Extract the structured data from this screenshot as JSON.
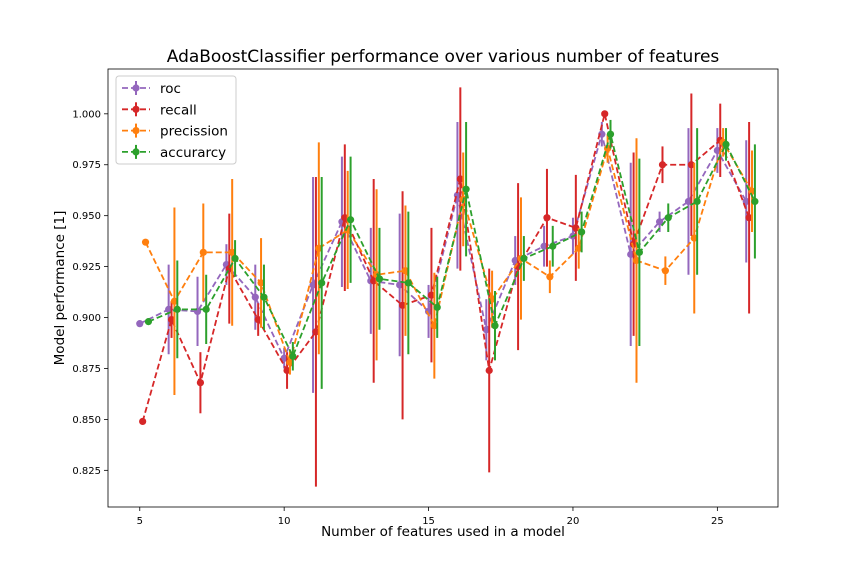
{
  "chart_data": {
    "type": "line",
    "title": "AdaBoostClassifier performance over various number of features",
    "xlabel": "Number of features used in a model",
    "ylabel": "Model performance [1]",
    "xlim": [
      3.9,
      27.1
    ],
    "ylim": [
      0.807,
      1.022
    ],
    "xticks": [
      5,
      10,
      15,
      20,
      25
    ],
    "yticks": [
      0.825,
      0.85,
      0.875,
      0.9,
      0.925,
      0.95,
      0.975,
      1.0
    ],
    "xtick_labels": [
      "5",
      "10",
      "15",
      "20",
      "25"
    ],
    "ytick_labels": [
      "0.825",
      "0.850",
      "0.875",
      "0.900",
      "0.925",
      "0.950",
      "0.975",
      "1.000"
    ],
    "grid": false,
    "legend_position": "top-left",
    "x": [
      5,
      6,
      7,
      8,
      9,
      10,
      11,
      12,
      13,
      14,
      15,
      16,
      17,
      18,
      19,
      20,
      21,
      22,
      23,
      24,
      25,
      26
    ],
    "series": [
      {
        "name": "roc",
        "color": "#9467bd",
        "values": [
          0.897,
          0.904,
          0.903,
          0.926,
          0.91,
          0.88,
          0.916,
          0.947,
          0.918,
          0.916,
          0.903,
          0.96,
          0.894,
          0.928,
          0.935,
          0.94,
          0.99,
          0.931,
          0.947,
          0.957,
          0.982,
          0.957
        ],
        "errors": [
          0.0,
          0.022,
          0.017,
          0.01,
          0.016,
          0.005,
          0.053,
          0.032,
          0.026,
          0.035,
          0.013,
          0.036,
          0.015,
          0.012,
          0.01,
          0.009,
          0.006,
          0.045,
          0.005,
          0.036,
          0.011,
          0.03
        ]
      },
      {
        "name": "recall",
        "color": "#d62728",
        "values": [
          0.849,
          0.899,
          0.868,
          0.924,
          0.899,
          0.874,
          0.893,
          0.949,
          0.918,
          0.906,
          0.911,
          0.968,
          0.874,
          0.925,
          0.949,
          0.944,
          1.0,
          0.936,
          0.975,
          0.975,
          0.987,
          0.949
        ],
        "errors": [
          0.0,
          0.009,
          0.015,
          0.027,
          0.008,
          0.009,
          0.076,
          0.036,
          0.05,
          0.056,
          0.033,
          0.045,
          0.05,
          0.041,
          0.024,
          0.026,
          0.0,
          0.045,
          0.009,
          0.035,
          0.018,
          0.047
        ]
      },
      {
        "name": "precission",
        "color": "#ff7f0e",
        "values": [
          0.937,
          0.908,
          0.932,
          0.932,
          0.917,
          0.878,
          0.934,
          0.943,
          0.921,
          0.923,
          0.896,
          0.958,
          0.909,
          0.929,
          0.92,
          0.934,
          0.983,
          0.928,
          0.923,
          0.939,
          0.986,
          0.962
        ],
        "errors": [
          0.0,
          0.046,
          0.024,
          0.036,
          0.022,
          0.006,
          0.052,
          0.029,
          0.042,
          0.032,
          0.026,
          0.023,
          0.014,
          0.03,
          0.008,
          0.01,
          0.007,
          0.06,
          0.007,
          0.037,
          0.007,
          0.02
        ]
      },
      {
        "name": "accurarcy",
        "color": "#2ca02c",
        "values": [
          0.898,
          0.904,
          0.904,
          0.929,
          0.91,
          0.881,
          0.917,
          0.948,
          0.919,
          0.917,
          0.905,
          0.963,
          0.896,
          0.929,
          0.935,
          0.942,
          0.99,
          0.932,
          0.949,
          0.957,
          0.985,
          0.957
        ],
        "errors": [
          0.0,
          0.024,
          0.017,
          0.009,
          0.016,
          0.007,
          0.052,
          0.031,
          0.025,
          0.035,
          0.015,
          0.033,
          0.017,
          0.011,
          0.01,
          0.01,
          0.007,
          0.046,
          0.007,
          0.036,
          0.008,
          0.028
        ]
      }
    ]
  }
}
